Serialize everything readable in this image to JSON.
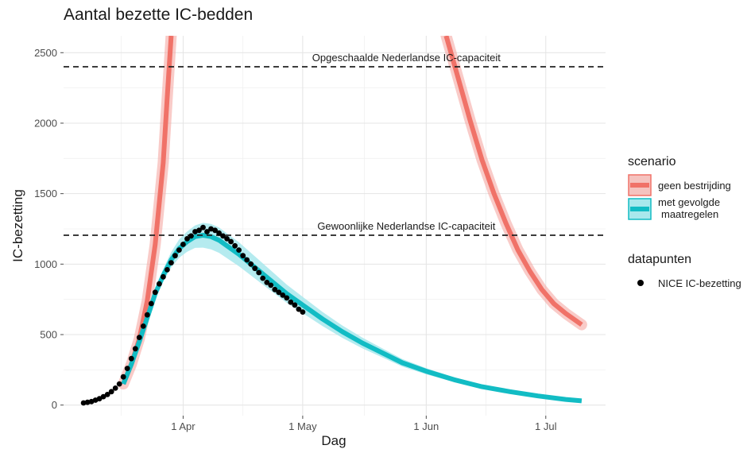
{
  "chart_data": {
    "type": "line",
    "title": "Aantal bezette IC-bedden",
    "xlabel": "Dag",
    "ylabel": "IC-bezetting",
    "xlim": [
      "2020-03-02",
      "2020-07-16"
    ],
    "ylim": [
      -75,
      2620
    ],
    "x_ticks": [
      {
        "date": "2020-04-01",
        "label": "1 Apr"
      },
      {
        "date": "2020-05-01",
        "label": "1 May"
      },
      {
        "date": "2020-06-01",
        "label": "1 Jun"
      },
      {
        "date": "2020-07-01",
        "label": "1 Jul"
      }
    ],
    "y_ticks": [
      0,
      500,
      1000,
      1500,
      2000,
      2500
    ],
    "grid": true,
    "reference_lines": [
      {
        "y": 2400,
        "label": "Opgeschaalde Nederlandse IC-capaciteit",
        "style": "dashed"
      },
      {
        "y": 1205,
        "label": "Gewoonlijke Nederlandse IC-capaciteit",
        "style": "dashed"
      }
    ],
    "series": [
      {
        "name": "geen bestrijding",
        "color": "#F07268",
        "band_color": "#F5A8A3",
        "x": [
          "2020-03-17",
          "2020-03-19",
          "2020-03-21",
          "2020-03-23",
          "2020-03-25",
          "2020-03-27",
          "2020-03-28",
          "2020-03-29"
        ],
        "y": [
          150,
          290,
          470,
          740,
          1140,
          1720,
          2180,
          2620
        ],
        "x_decline": [
          "2020-06-06",
          "2020-06-09",
          "2020-06-12",
          "2020-06-15",
          "2020-06-18",
          "2020-06-21",
          "2020-06-24",
          "2020-06-27",
          "2020-06-30",
          "2020-07-03",
          "2020-07-06",
          "2020-07-10"
        ],
        "y_decline": [
          2620,
          2320,
          2020,
          1740,
          1500,
          1290,
          1100,
          950,
          820,
          720,
          650,
          570
        ]
      },
      {
        "name": "met gevolgde maatregelen",
        "color": "#12BCC4",
        "band_color": "#A8E8EC",
        "x": [
          "2020-03-17",
          "2020-03-19",
          "2020-03-21",
          "2020-03-23",
          "2020-03-25",
          "2020-03-27",
          "2020-03-29",
          "2020-03-31",
          "2020-04-02",
          "2020-04-04",
          "2020-04-06",
          "2020-04-08",
          "2020-04-10",
          "2020-04-12",
          "2020-04-15",
          "2020-04-18",
          "2020-04-21",
          "2020-04-24",
          "2020-04-27",
          "2020-05-01",
          "2020-05-06",
          "2020-05-11",
          "2020-05-16",
          "2020-05-21",
          "2020-05-26",
          "2020-06-01",
          "2020-06-08",
          "2020-06-15",
          "2020-06-22",
          "2020-06-29",
          "2020-07-06",
          "2020-07-10"
        ],
        "y": [
          150,
          290,
          450,
          620,
          790,
          920,
          1030,
          1110,
          1160,
          1195,
          1205,
          1195,
          1170,
          1130,
          1070,
          1000,
          930,
          860,
          790,
          710,
          610,
          520,
          440,
          370,
          300,
          240,
          180,
          130,
          95,
          65,
          40,
          30
        ],
        "band_half_width": [
          8,
          12,
          18,
          25,
          35,
          45,
          55,
          65,
          72,
          80,
          88,
          90,
          90,
          88,
          85,
          80,
          75,
          70,
          65,
          58,
          50,
          44,
          38,
          32,
          27,
          22,
          17,
          14,
          11,
          9,
          7,
          6
        ]
      }
    ],
    "points": {
      "name": "NICE IC-bezetting",
      "color": "#000000",
      "x": [
        "2020-03-07",
        "2020-03-08",
        "2020-03-09",
        "2020-03-10",
        "2020-03-11",
        "2020-03-12",
        "2020-03-13",
        "2020-03-14",
        "2020-03-15",
        "2020-03-16",
        "2020-03-17",
        "2020-03-18",
        "2020-03-19",
        "2020-03-20",
        "2020-03-21",
        "2020-03-22",
        "2020-03-23",
        "2020-03-24",
        "2020-03-25",
        "2020-03-26",
        "2020-03-27",
        "2020-03-28",
        "2020-03-29",
        "2020-03-30",
        "2020-03-31",
        "2020-04-01",
        "2020-04-02",
        "2020-04-03",
        "2020-04-04",
        "2020-04-05",
        "2020-04-06",
        "2020-04-07",
        "2020-04-08",
        "2020-04-09",
        "2020-04-10",
        "2020-04-11",
        "2020-04-12",
        "2020-04-13",
        "2020-04-14",
        "2020-04-15",
        "2020-04-16",
        "2020-04-17",
        "2020-04-18",
        "2020-04-19",
        "2020-04-20",
        "2020-04-21",
        "2020-04-22",
        "2020-04-23",
        "2020-04-24",
        "2020-04-25",
        "2020-04-26",
        "2020-04-27",
        "2020-04-28",
        "2020-04-29",
        "2020-04-30",
        "2020-05-01"
      ],
      "y": [
        15,
        20,
        25,
        35,
        45,
        60,
        75,
        95,
        120,
        150,
        200,
        260,
        330,
        400,
        480,
        560,
        640,
        720,
        800,
        860,
        910,
        960,
        1010,
        1060,
        1100,
        1140,
        1180,
        1200,
        1230,
        1240,
        1260,
        1230,
        1250,
        1240,
        1220,
        1200,
        1180,
        1160,
        1130,
        1100,
        1060,
        1030,
        1000,
        970,
        940,
        900,
        870,
        850,
        820,
        800,
        780,
        760,
        730,
        710,
        680,
        660
      ]
    },
    "legend": {
      "placement": "right",
      "groups": [
        {
          "title": "scenario",
          "items": [
            "geen bestrijding",
            "met gevolgde\nmaatregelen"
          ]
        },
        {
          "title": "datapunten",
          "items": [
            "NICE IC-bezetting"
          ]
        }
      ]
    }
  }
}
